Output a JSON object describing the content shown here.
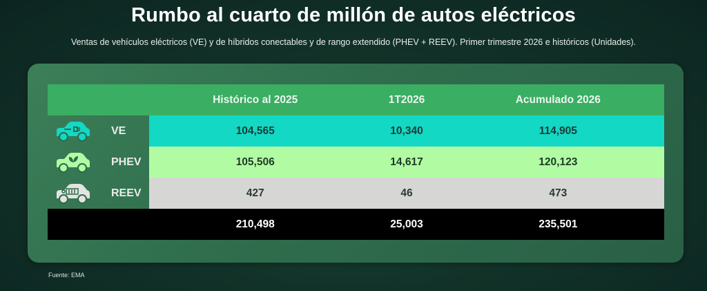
{
  "title": "Rumbo al cuarto de millón de autos eléctricos",
  "subtitle": "Ventas de vehículos eléctricos (VE) y de híbridos conectables y de rango extendido (PHEV + REEV). Primer trimestre 2026 e históricos (Unidades).",
  "table": {
    "headers": [
      "",
      "Histórico al 2025",
      "1T2026",
      "Acumulado 2026"
    ],
    "rows": [
      {
        "label": "VE",
        "icon": "ev-plug-car-icon",
        "color": "#12d8c4",
        "values": [
          "104,565",
          "10,340",
          "114,905"
        ]
      },
      {
        "label": "PHEV",
        "icon": "leaf-car-icon",
        "color": "#b1fca3",
        "values": [
          "105,506",
          "14,617",
          "120,123"
        ]
      },
      {
        "label": "REEV",
        "icon": "battery-car-icon",
        "color": "#d6d6d4",
        "values": [
          "427",
          "46",
          "473"
        ]
      }
    ],
    "total": [
      "210,498",
      "25,003",
      "235,501"
    ]
  },
  "source": "Fuente: EMA"
}
